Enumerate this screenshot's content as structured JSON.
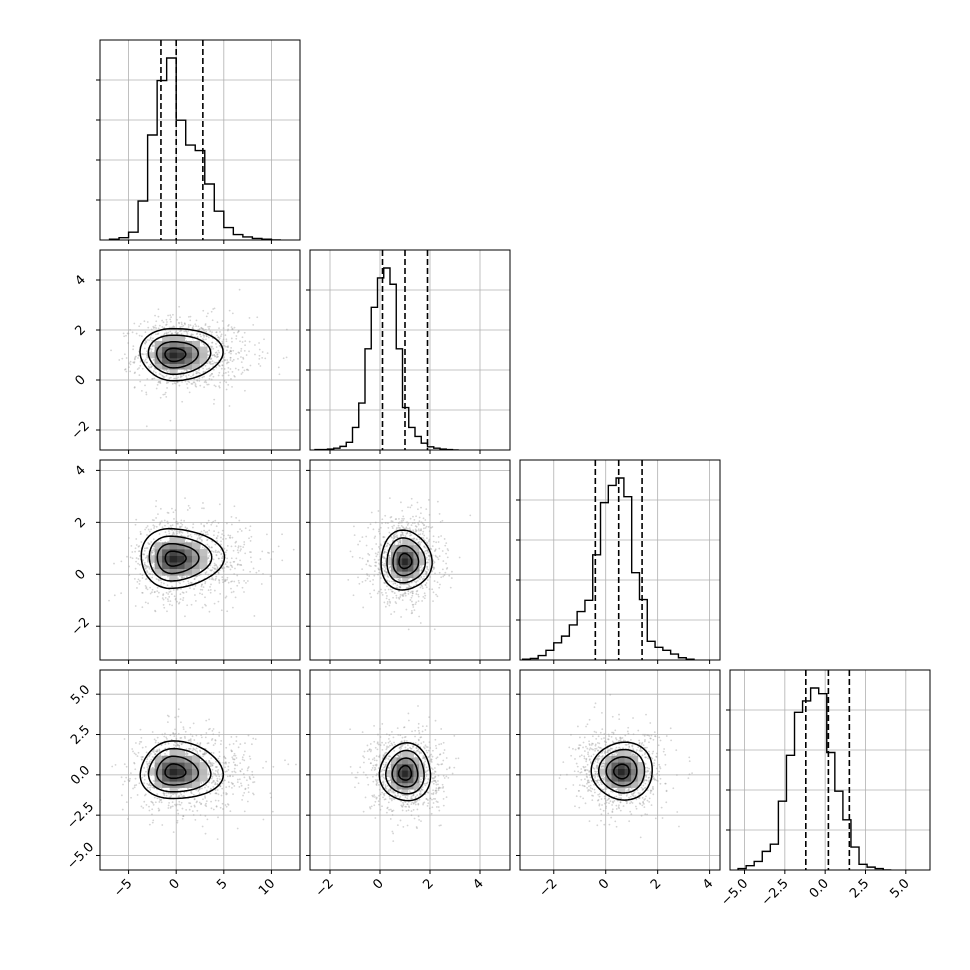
{
  "chart_data": {
    "type": "corner",
    "title": "",
    "grid": true,
    "n_params": 4,
    "axis_labels": [
      "",
      "",
      "",
      ""
    ],
    "ranges": [
      [
        -8,
        13
      ],
      [
        -2.8,
        5.2
      ],
      [
        -3.3,
        4.4
      ],
      [
        -5.9,
        6.5
      ]
    ],
    "ticks": [
      {
        "values": [
          -5,
          0,
          5,
          10
        ],
        "labels": [
          "−5",
          "0",
          "5",
          "10"
        ]
      },
      {
        "values": [
          -2,
          0,
          2,
          4
        ],
        "labels": [
          "−2",
          "0",
          "2",
          "4"
        ]
      },
      {
        "values": [
          -2,
          0,
          2,
          4
        ],
        "labels": [
          "−2",
          "0",
          "2",
          "4"
        ]
      },
      {
        "values": [
          -5,
          -2.5,
          0,
          2.5,
          5
        ],
        "labels": [
          "−5.0",
          "−2.5",
          "0.0",
          "2.5",
          "5.0"
        ]
      }
    ],
    "quantiles": [
      [
        -1.6,
        0.0,
        2.8
      ],
      [
        0.1,
        1.0,
        1.9
      ],
      [
        -0.4,
        0.5,
        1.4
      ],
      [
        -1.2,
        0.2,
        1.5
      ]
    ],
    "histograms": [
      {
        "bin_start": -7,
        "bin_width": 1,
        "counts": [
          1,
          3,
          10,
          50,
          135,
          205,
          234,
          154,
          122,
          115,
          72,
          37,
          16,
          7,
          4,
          2,
          1,
          0
        ]
      },
      {
        "bin_start": -2.6,
        "bin_width": 0.25,
        "counts": [
          1,
          1,
          2,
          4,
          8,
          17,
          50,
          104,
          224,
          316,
          381,
          403,
          367,
          224,
          94,
          50,
          30,
          15,
          7,
          4,
          2,
          1,
          0
        ]
      },
      {
        "bin_start": -3.2,
        "bin_width": 0.3,
        "counts": [
          1,
          2,
          6,
          13,
          23,
          32,
          47,
          65,
          80,
          141,
          211,
          234,
          244,
          219,
          117,
          81,
          25,
          17,
          13,
          8,
          3,
          1
        ]
      },
      {
        "bin_start": -5.4,
        "bin_width": 0.5,
        "counts": [
          1,
          3,
          6,
          13,
          18,
          48,
          80,
          110,
          118,
          127,
          123,
          82,
          55,
          35,
          16,
          4,
          2,
          1,
          0
        ]
      }
    ],
    "pairs": [
      {
        "row": 1,
        "col": 0,
        "x_std": 2.8,
        "y_std": 0.8,
        "x_skew": 0.9,
        "y_skew": 0.2,
        "mode": [
          -0.3,
          1.0
        ],
        "scatter_x_center": 0.6,
        "scatter_y_center": 1.0
      },
      {
        "row": 2,
        "col": 0,
        "x_std": 2.8,
        "y_std": 0.9,
        "x_skew": 0.9,
        "y_skew": 0.1,
        "mode": [
          -0.3,
          0.6
        ],
        "scatter_x_center": 0.6,
        "scatter_y_center": 0.6
      },
      {
        "row": 2,
        "col": 1,
        "x_std": 0.8,
        "y_std": 0.9,
        "x_skew": 0.1,
        "y_skew": 0.1,
        "mode": [
          1.0,
          0.5
        ],
        "scatter_x_center": 1.0,
        "scatter_y_center": 0.5
      },
      {
        "row": 3,
        "col": 0,
        "x_std": 2.8,
        "y_std": 1.4,
        "x_skew": 0.9,
        "y_skew": 0.1,
        "mode": [
          -0.3,
          0.2
        ],
        "scatter_x_center": 0.6,
        "scatter_y_center": 0.2
      },
      {
        "row": 3,
        "col": 1,
        "x_std": 0.8,
        "y_std": 1.4,
        "x_skew": 0.1,
        "y_skew": 0.1,
        "mode": [
          1.0,
          0.1
        ],
        "scatter_x_center": 1.0,
        "scatter_y_center": 0.1
      },
      {
        "row": 3,
        "col": 2,
        "x_std": 0.9,
        "y_std": 1.4,
        "x_skew": 0.2,
        "y_skew": 0.1,
        "mode": [
          0.6,
          0.2
        ],
        "scatter_x_center": 0.5,
        "scatter_y_center": 0.2
      }
    ],
    "contour_levels": [
      0.5,
      1.0,
      1.5,
      2.0
    ],
    "colors": {
      "histogram": "#000000",
      "quantile_line": "#000000",
      "scatter_point": "#a0a0a0",
      "grid": "#b0b0b0",
      "contour": "#000000",
      "density_dark": "#2a2a2a",
      "density_light": "#e6e6e6"
    }
  }
}
